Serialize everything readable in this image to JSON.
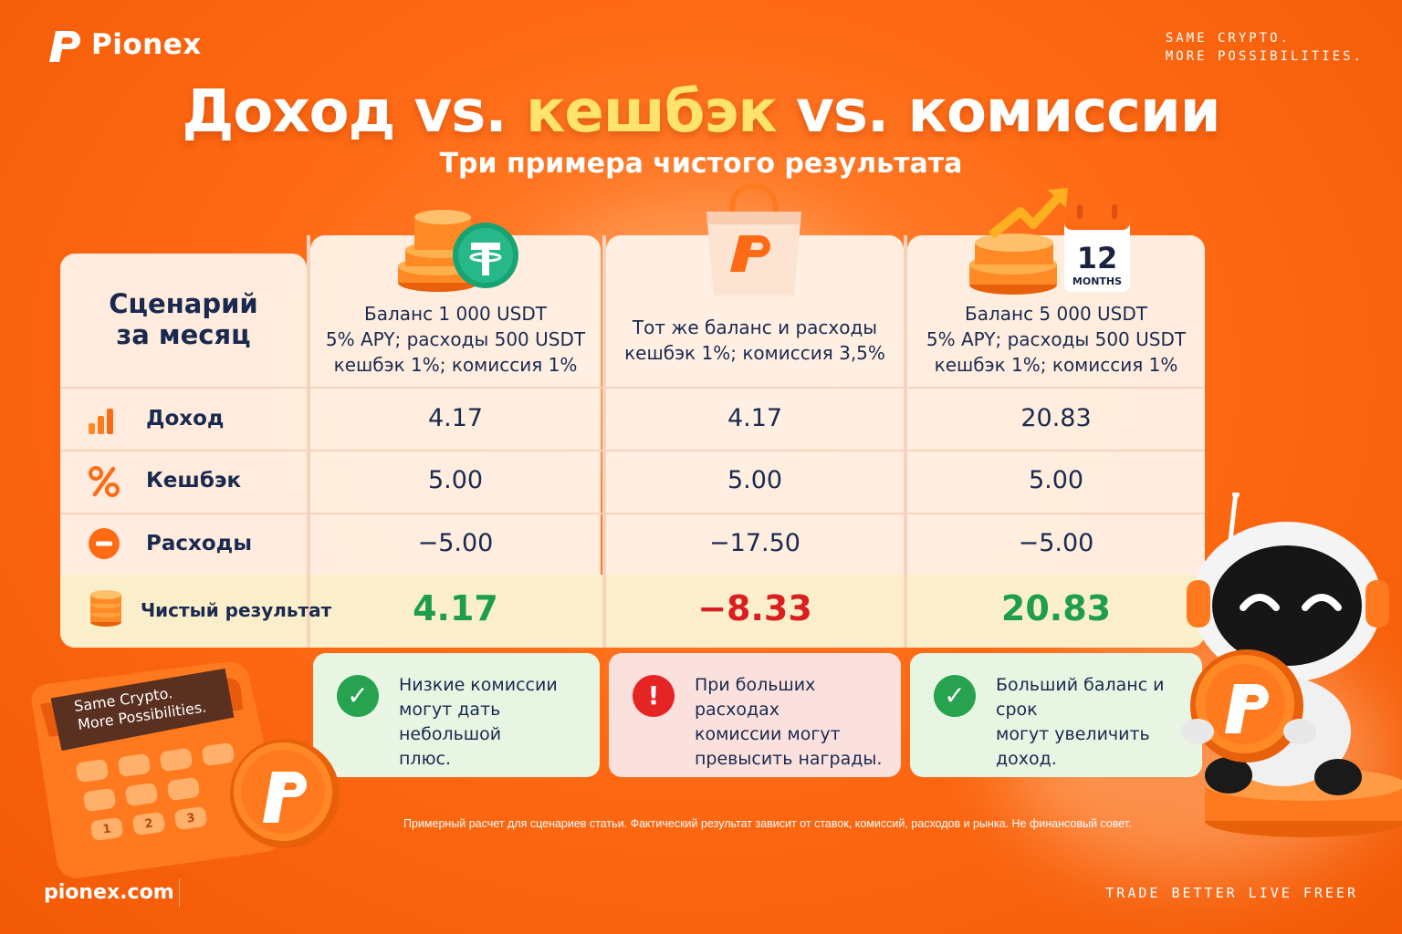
{
  "brand": {
    "name": "Pionex",
    "tagline_line1": "SAME  CRYPTO.",
    "tagline_line2": "MORE  POSSIBILITIES.",
    "site": "pionex.com",
    "footer_tagline": "TRADE  BETTER   LIVE  FREER"
  },
  "title": {
    "part1": "Доход vs. ",
    "highlight": "кешбэк",
    "part2": " vs. комиссии",
    "subtitle": "Три примера чистого результата"
  },
  "table": {
    "header_label_line1": "Сценарий",
    "header_label_line2": "за месяц",
    "columns": [
      {
        "line1": "Баланс 1 000 USDT",
        "line2": "5% APY; расходы 500 USDT",
        "line3": "кешбэк 1%; комиссия 1%",
        "icon": "usdt-coins-icon"
      },
      {
        "line1": "Тот же баланс и расходы",
        "line2": "кешбэк 1%; комиссия 3,5%",
        "line3": "",
        "icon": "shopping-bag-icon"
      },
      {
        "line1": "Баланс 5 000 USDT",
        "line2": "5% APY; расходы 500 USDT",
        "line3": "кешбэк 1%; комиссия 1%",
        "icon": "calendar-growth-icon"
      }
    ],
    "calendar_number": "12",
    "calendar_label": "MONTHS",
    "rows": [
      {
        "label": "Доход",
        "icon": "bar-chart-icon",
        "values": [
          "4.17",
          "4.17",
          "20.83"
        ]
      },
      {
        "label": "Кешбэк",
        "icon": "percent-icon",
        "values": [
          "5.00",
          "5.00",
          "5.00"
        ]
      },
      {
        "label": "Расходы",
        "icon": "minus-circle-icon",
        "values": [
          "−5.00",
          "−17.50",
          "−5.00"
        ]
      }
    ],
    "net": {
      "label": "Чистый результат",
      "icon": "coin-stack-icon",
      "values": [
        "4.17",
        "−8.33",
        "20.83"
      ]
    }
  },
  "notes": [
    {
      "type": "ok",
      "line1": "Низкие комиссии",
      "line2": "могут дать небольшой",
      "line3": "плюс."
    },
    {
      "type": "warn",
      "line1": "При больших расходах",
      "line2": "комиссии могут",
      "line3": "превысить награды."
    },
    {
      "type": "ok",
      "line1": "Больший баланс и срок",
      "line2": "могут увеличить",
      "line3": "доход."
    }
  ],
  "calculator": {
    "screen_line1": "Same Crypto.",
    "screen_line2": "More Possibilities.",
    "keys": [
      "1",
      "2",
      "3"
    ]
  },
  "disclaimer": "Примерный расчет для сценариев статьи. Фактический результат зависит от ставок, комиссий, расходов и рынка. Не финансовый совет.",
  "colors": {
    "positive": "#1f9e4a",
    "negative": "#d91f1f",
    "accent": "#ff6a14",
    "highlight": "#ffe36b"
  }
}
